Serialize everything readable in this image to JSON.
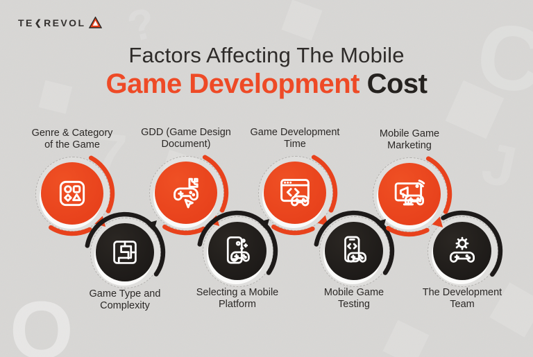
{
  "logo": {
    "part1": "TE",
    "k": "❮",
    "part2": "REVOL"
  },
  "title": {
    "line1": "Factors Affecting The Mobile",
    "line2_accent": "Game Development",
    "line2_rest": " Cost"
  },
  "items": [
    {
      "id": "genre-category",
      "variant": "orange",
      "icon": "category-shapes-icon",
      "line1": "Genre & Category",
      "line2": "of the Game"
    },
    {
      "id": "game-type-complexity",
      "variant": "dark",
      "icon": "maze-icon",
      "line1": "Game Type and",
      "line2": "Complexity"
    },
    {
      "id": "gdd",
      "variant": "orange",
      "icon": "gamepad-puzzle-icon",
      "line1": "GDD (Game Design",
      "line2": "Document)"
    },
    {
      "id": "mobile-platform",
      "variant": "dark",
      "icon": "phone-gamepad-icon",
      "line1": "Selecting a Mobile",
      "line2": "Platform"
    },
    {
      "id": "development-time",
      "variant": "orange",
      "icon": "browser-code-gamepad-icon",
      "line1": "Game Development",
      "line2": "Time"
    },
    {
      "id": "mobile-game-testing",
      "variant": "dark",
      "icon": "phone-code-gamepad-icon",
      "line1": "Mobile Game",
      "line2": "Testing"
    },
    {
      "id": "mobile-game-marketing",
      "variant": "orange",
      "icon": "screen-megaphone-gamepad-icon",
      "line1": "Mobile Game",
      "line2": "Marketing"
    },
    {
      "id": "development-team",
      "variant": "dark",
      "icon": "gear-gamepad-icon",
      "line1": "The Development",
      "line2": "Team"
    }
  ],
  "colors": {
    "accent": "#E8421C",
    "title_accent": "#EE4A26",
    "dark_circle": "#211E1C",
    "dark_arrow": "#1D1A19",
    "background": "#D8D7D5",
    "text": "#2B2826"
  },
  "background": {
    "glyphs": [
      "?",
      "C",
      "7",
      "O",
      "J"
    ]
  }
}
